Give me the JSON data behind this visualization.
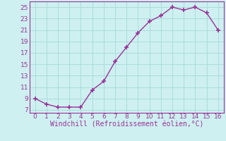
{
  "x": [
    0,
    1,
    2,
    3,
    4,
    5,
    6,
    7,
    8,
    9,
    10,
    11,
    12,
    13,
    14,
    15,
    16
  ],
  "y": [
    9,
    8,
    7.5,
    7.5,
    7.5,
    10.5,
    12,
    15.5,
    18,
    20.5,
    22.5,
    23.5,
    25,
    24.5,
    25,
    24,
    21
  ],
  "line_color": "#993399",
  "marker": "+",
  "marker_size": 4,
  "marker_lw": 1.2,
  "bg_color": "#cef0f0",
  "grid_color": "#aadcdc",
  "xlabel": "Windchill (Refroidissement éolien,°C)",
  "ylabel": "",
  "xlim": [
    -0.5,
    16.5
  ],
  "ylim": [
    6.5,
    26
  ],
  "xticks": [
    0,
    1,
    2,
    3,
    4,
    5,
    6,
    7,
    8,
    9,
    10,
    11,
    12,
    13,
    14,
    15,
    16
  ],
  "yticks": [
    7,
    9,
    11,
    13,
    15,
    17,
    19,
    21,
    23,
    25
  ],
  "xlabel_fontsize": 7,
  "tick_fontsize": 6.5,
  "axis_color": "#993399",
  "linewidth": 1.0
}
